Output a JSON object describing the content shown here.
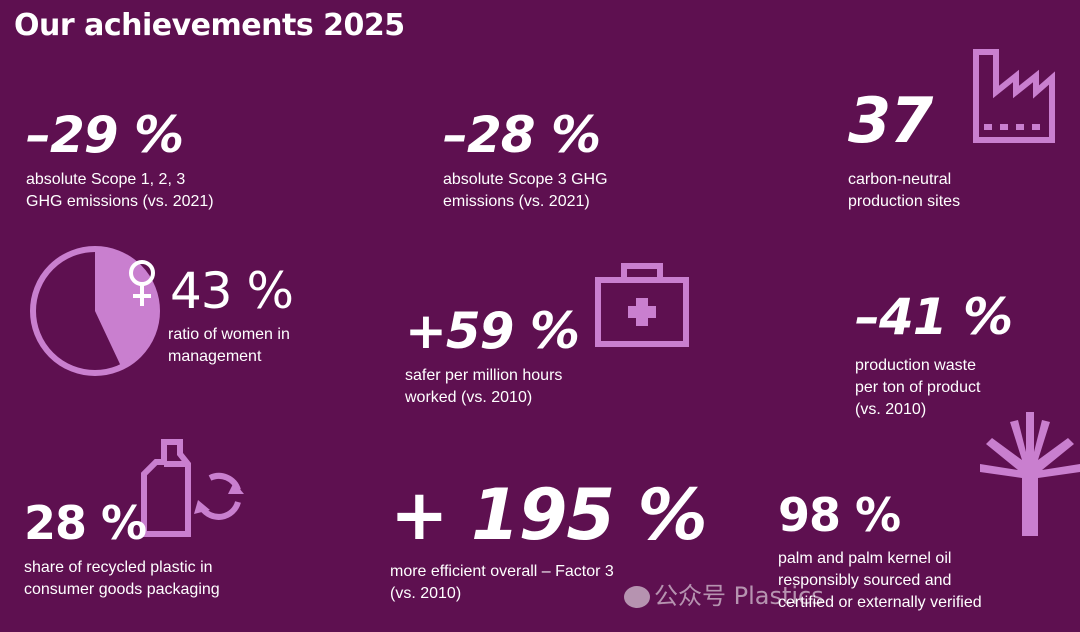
{
  "title": "Our achievements 2025",
  "colors": {
    "background": "#5e1050",
    "accent": "#c97fcf",
    "text": "#ffffff"
  },
  "stats": [
    {
      "value": "–29 %",
      "description": "absolute Scope 1, 2, 3\nGHG emissions (vs. 2021)"
    },
    {
      "value": "–28 %",
      "description": "absolute Scope 3 GHG\nemissions (vs. 2021)"
    },
    {
      "value": "37",
      "description": "carbon-neutral\nproduction sites",
      "icon": "factory-icon"
    },
    {
      "value": "43 %",
      "description": "ratio of women in\nmanagement",
      "icon": "female-symbol-icon",
      "pie_fraction": 0.43
    },
    {
      "value": "+59 %",
      "description": "safer per million hours\nworked (vs. 2010)",
      "icon": "first-aid-kit-icon"
    },
    {
      "value": "–41 %",
      "description": "production waste\nper ton of product\n(vs. 2010)"
    },
    {
      "value": "28 %",
      "description": "share of recycled plastic in\nconsumer goods packaging",
      "icon": "recycled-bottle-icon"
    },
    {
      "value": "+ 195 %",
      "description": "more efficient overall – Factor 3\n(vs. 2010)"
    },
    {
      "value": "98 %",
      "description": "palm and palm kernel oil\nresponsibly sourced and\ncertified or externally verified",
      "icon": "palm-tree-icon"
    }
  ],
  "watermark": "公众号 Plastics"
}
